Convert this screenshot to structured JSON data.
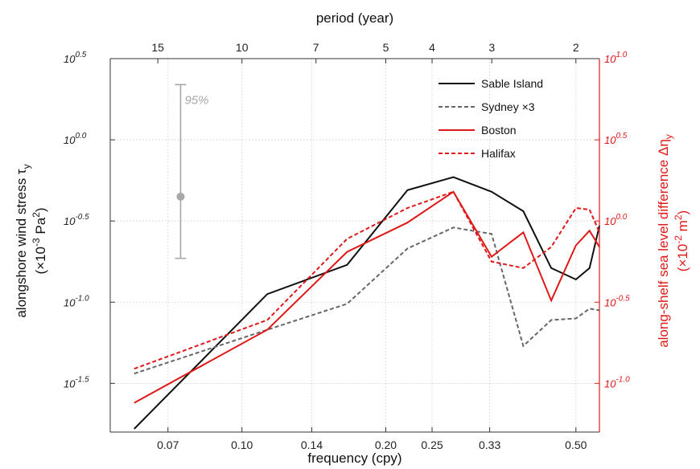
{
  "chart_data": {
    "type": "line",
    "xlabel": "frequency (cpy)",
    "x2label": "period (year)",
    "ylabel": [
      "alongshore wind stress τ",
      "y",
      "(×10",
      "-3",
      " Pa",
      "2",
      ")"
    ],
    "y2label": [
      "along-shelf sea level difference Δη",
      "y",
      "(×10",
      "-2",
      " m",
      "2",
      ")"
    ],
    "x_scale": "log",
    "y_scale": "log",
    "xlim": [
      0.053,
      0.56
    ],
    "ylim_left_log10": [
      -1.8,
      0.5
    ],
    "ylim_right_log10": [
      -1.3,
      1.0
    ],
    "x_ticks": [
      {
        "value": 0.07,
        "label": "0.07"
      },
      {
        "value": 0.1,
        "label": "0.10"
      },
      {
        "value": 0.14,
        "label": "0.14"
      },
      {
        "value": 0.2,
        "label": "0.20"
      },
      {
        "value": 0.25,
        "label": "0.25"
      },
      {
        "value": 0.33,
        "label": "0.33"
      },
      {
        "value": 0.5,
        "label": "0.50"
      }
    ],
    "x2_ticks": [
      {
        "value": 15,
        "label": "15"
      },
      {
        "value": 10,
        "label": "10"
      },
      {
        "value": 7,
        "label": "7"
      },
      {
        "value": 5,
        "label": "5"
      },
      {
        "value": 4,
        "label": "4"
      },
      {
        "value": 3,
        "label": "3"
      },
      {
        "value": 2,
        "label": "2"
      }
    ],
    "y_ticks_left": [
      {
        "value": 0.5,
        "base": "10",
        "exp": "0.5"
      },
      {
        "value": 0.0,
        "base": "10",
        "exp": "0.0"
      },
      {
        "value": -0.5,
        "base": "10",
        "exp": "-0.5"
      },
      {
        "value": -1.0,
        "base": "10",
        "exp": "-1.0"
      },
      {
        "value": -1.5,
        "base": "10",
        "exp": "-1.5"
      }
    ],
    "y_ticks_right": [
      {
        "value": 1.0,
        "base": "10",
        "exp": "1.0"
      },
      {
        "value": 0.5,
        "base": "10",
        "exp": "0.5"
      },
      {
        "value": 0.0,
        "base": "10",
        "exp": "0.0"
      },
      {
        "value": -0.5,
        "base": "10",
        "exp": "-0.5"
      },
      {
        "value": -1.0,
        "base": "10",
        "exp": "-1.0"
      }
    ],
    "grid": true,
    "legend_position": "top-right",
    "series": [
      {
        "name": "Sable Island",
        "axis": "left",
        "color": "#111111",
        "dash": "solid",
        "x": [
          0.0595,
          0.113,
          0.166,
          0.222,
          0.277,
          0.333,
          0.388,
          0.444,
          0.5,
          0.534,
          0.56
        ],
        "y_log10": [
          -1.78,
          -0.95,
          -0.77,
          -0.31,
          -0.23,
          -0.32,
          -0.44,
          -0.79,
          -0.86,
          -0.79,
          -0.53
        ]
      },
      {
        "name": "Sydney ×3",
        "axis": "left",
        "color": "#666666",
        "dash": "dashed",
        "x": [
          0.0595,
          0.113,
          0.166,
          0.222,
          0.277,
          0.333,
          0.388,
          0.444,
          0.5,
          0.534,
          0.56
        ],
        "y_log10": [
          -1.44,
          -1.17,
          -1.01,
          -0.67,
          -0.54,
          -0.58,
          -1.27,
          -1.11,
          -1.1,
          -1.04,
          -1.05
        ]
      },
      {
        "name": "Boston",
        "axis": "right",
        "color": "#e01818",
        "dash": "solid",
        "x": [
          0.0595,
          0.113,
          0.166,
          0.222,
          0.277,
          0.333,
          0.388,
          0.444,
          0.5,
          0.534,
          0.56
        ],
        "y_log10": [
          -1.12,
          -0.67,
          -0.19,
          -0.01,
          0.18,
          -0.22,
          -0.07,
          -0.49,
          -0.15,
          -0.06,
          -0.16
        ]
      },
      {
        "name": "Halifax",
        "axis": "right",
        "color": "#e01818",
        "dash": "dashed",
        "x": [
          0.0595,
          0.113,
          0.166,
          0.222,
          0.277,
          0.333,
          0.388,
          0.444,
          0.5,
          0.534,
          0.56
        ],
        "y_log10": [
          -0.91,
          -0.61,
          -0.11,
          0.08,
          0.18,
          -0.25,
          -0.29,
          -0.16,
          0.08,
          0.07,
          -0.07
        ]
      }
    ],
    "error_bar": {
      "label": "95%",
      "x": 0.0744,
      "center_log10": -0.35,
      "lower_log10": -0.73,
      "upper_log10": 0.34,
      "color": "#a8a8a8"
    }
  }
}
